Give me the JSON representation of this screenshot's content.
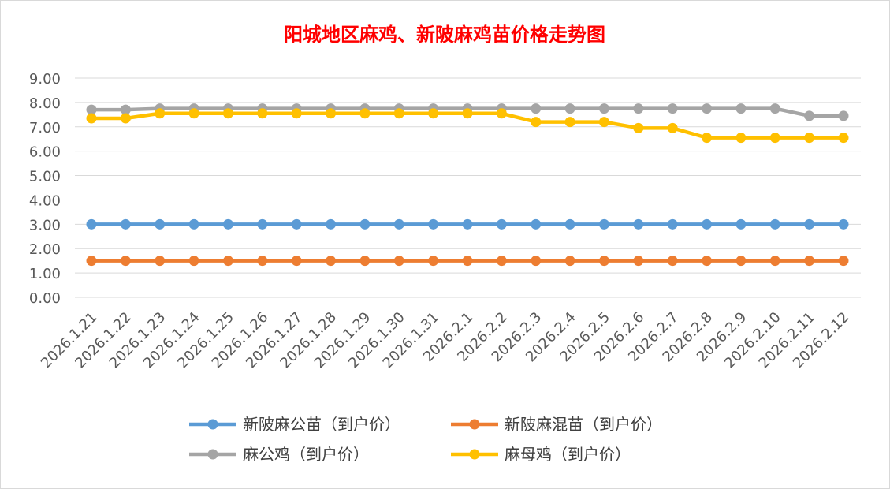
{
  "chart_data": {
    "type": "line",
    "title": "阳城地区麻鸡、新陂麻鸡苗价格走势图",
    "xlabel": "",
    "ylabel": "",
    "ylim": [
      0,
      9
    ],
    "ytick_step": 1,
    "ytick_labels": [
      "0.00",
      "1.00",
      "2.00",
      "3.00",
      "4.00",
      "5.00",
      "6.00",
      "7.00",
      "8.00",
      "9.00"
    ],
    "grid": true,
    "legend_position": "bottom",
    "categories": [
      "2026.1.21",
      "2026.1.22",
      "2026.1.23",
      "2026.1.24",
      "2026.1.25",
      "2026.1.26",
      "2026.1.27",
      "2026.1.28",
      "2026.1.29",
      "2026.1.30",
      "2026.1.31",
      "2026.2.1",
      "2026.2.2",
      "2026.2.3",
      "2026.2.4",
      "2026.2.5",
      "2026.2.6",
      "2026.2.7",
      "2026.2.8",
      "2026.2.9",
      "2026.2.10",
      "2026.2.11",
      "2026.2.12"
    ],
    "series": [
      {
        "name": "新陂麻公苗（到户价）",
        "color": "#5b9bd5",
        "values": [
          3,
          3,
          3,
          3,
          3,
          3,
          3,
          3,
          3,
          3,
          3,
          3,
          3,
          3,
          3,
          3,
          3,
          3,
          3,
          3,
          3,
          3,
          3
        ]
      },
      {
        "name": "新陂麻混苗（到户价）",
        "color": "#ed7d31",
        "values": [
          1.5,
          1.5,
          1.5,
          1.5,
          1.5,
          1.5,
          1.5,
          1.5,
          1.5,
          1.5,
          1.5,
          1.5,
          1.5,
          1.5,
          1.5,
          1.5,
          1.5,
          1.5,
          1.5,
          1.5,
          1.5,
          1.5,
          1.5
        ]
      },
      {
        "name": "麻公鸡（到户价）",
        "color": "#a5a5a5",
        "values": [
          7.7,
          7.7,
          7.75,
          7.75,
          7.75,
          7.75,
          7.75,
          7.75,
          7.75,
          7.75,
          7.75,
          7.75,
          7.75,
          7.75,
          7.75,
          7.75,
          7.75,
          7.75,
          7.75,
          7.75,
          7.75,
          7.45,
          7.45
        ]
      },
      {
        "name": "麻母鸡（到户价）",
        "color": "#ffc000",
        "values": [
          7.35,
          7.35,
          7.55,
          7.55,
          7.55,
          7.55,
          7.55,
          7.55,
          7.55,
          7.55,
          7.55,
          7.55,
          7.55,
          7.2,
          7.2,
          7.2,
          6.95,
          6.95,
          6.55,
          6.55,
          6.55,
          6.55,
          6.55
        ]
      }
    ]
  }
}
